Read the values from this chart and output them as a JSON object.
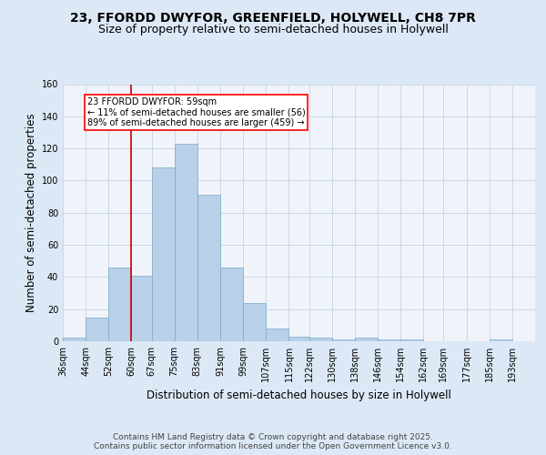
{
  "title_line1": "23, FFORDD DWYFOR, GREENFIELD, HOLYWELL, CH8 7PR",
  "title_line2": "Size of property relative to semi-detached houses in Holywell",
  "xlabel": "Distribution of semi-detached houses by size in Holywell",
  "ylabel": "Number of semi-detached properties",
  "footer": "Contains HM Land Registry data © Crown copyright and database right 2025.\nContains public sector information licensed under the Open Government Licence v3.0.",
  "bins": [
    "36sqm",
    "44sqm",
    "52sqm",
    "60sqm",
    "67sqm",
    "75sqm",
    "83sqm",
    "91sqm",
    "99sqm",
    "107sqm",
    "115sqm",
    "122sqm",
    "130sqm",
    "138sqm",
    "146sqm",
    "154sqm",
    "162sqm",
    "169sqm",
    "177sqm",
    "185sqm",
    "193sqm"
  ],
  "bin_edges": [
    36,
    44,
    52,
    60,
    67,
    75,
    83,
    91,
    99,
    107,
    115,
    122,
    130,
    138,
    146,
    154,
    162,
    169,
    177,
    185,
    193
  ],
  "values": [
    2,
    15,
    46,
    41,
    108,
    123,
    91,
    46,
    24,
    8,
    3,
    2,
    1,
    2,
    1,
    1,
    0,
    0,
    0,
    1
  ],
  "bar_color": "#b8d0e8",
  "bar_edge_color": "#7aaac8",
  "property_line_x": 60,
  "property_sqm": 59,
  "pct_smaller": 11,
  "n_smaller": 56,
  "pct_larger": 89,
  "n_larger": 459,
  "annotation_text_line1": "23 FFORDD DWYFOR: 59sqm",
  "annotation_text_line2": "← 11% of semi-detached houses are smaller (56)",
  "annotation_text_line3": "89% of semi-detached houses are larger (459) →",
  "ylim": [
    0,
    160
  ],
  "background_color": "#dce8f5",
  "plot_bg_color": "#f0f4fa",
  "grid_color": "#c8d8ec",
  "line_color": "#cc0000",
  "title_fontsize": 10,
  "subtitle_fontsize": 9,
  "axis_label_fontsize": 8.5,
  "tick_fontsize": 7,
  "footer_fontsize": 6.5,
  "ann_fontsize": 7
}
